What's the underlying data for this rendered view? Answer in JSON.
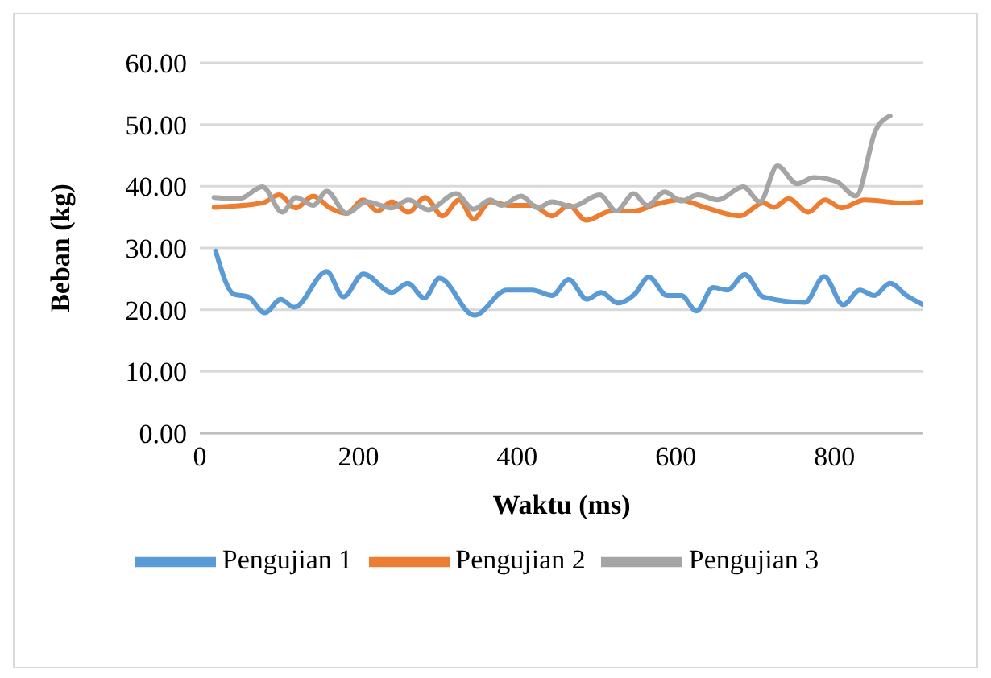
{
  "chart_data": {
    "type": "line",
    "xlabel": "Waktu (ms)",
    "ylabel": "Beban (kg)",
    "xlim": [
      0,
      912
    ],
    "xticks": [
      0,
      200,
      400,
      600,
      800
    ],
    "ylim": [
      0,
      60
    ],
    "yticks": [
      {
        "value": 0,
        "label": "0.00"
      },
      {
        "value": 10,
        "label": "10.00"
      },
      {
        "value": 20,
        "label": "20.00"
      },
      {
        "value": 30,
        "label": "30.00"
      },
      {
        "value": 40,
        "label": "40.00"
      },
      {
        "value": 50,
        "label": "50.00"
      },
      {
        "value": 60,
        "label": "60.00"
      }
    ],
    "grid": "y",
    "legend": "bottom",
    "marker": "none",
    "line_style": "solid",
    "series": [
      {
        "name": "Pengujian 1",
        "color": "#5b9bd5",
        "x": [
          20,
          43,
          61,
          82,
          102,
          119,
          160,
          181,
          206,
          242,
          262,
          283,
          302,
          346,
          387,
          419,
          444,
          465,
          488,
          506,
          527,
          548,
          566,
          589,
          607,
          626,
          647,
          665,
          687,
          710,
          763,
          787,
          811,
          832,
          850,
          870,
          891,
          912
        ],
        "values": [
          29.5,
          22.5,
          22.1,
          19.5,
          21.7,
          20.4,
          26.2,
          22.1,
          25.8,
          22.8,
          24.3,
          21.9,
          25.1,
          19.1,
          23.2,
          23.2,
          22.3,
          24.9,
          21.7,
          22.8,
          21.1,
          22.5,
          25.3,
          22.3,
          22.3,
          19.8,
          23.6,
          23.2,
          25.7,
          22.1,
          21.2,
          25.4,
          20.8,
          23.2,
          22.3,
          24.3,
          22.3,
          20.8
        ]
      },
      {
        "name": "Pengujian 2",
        "color": "#ed7d31",
        "x": [
          18,
          79,
          100,
          121,
          143,
          164,
          185,
          206,
          224,
          242,
          263,
          284,
          306,
          327,
          345,
          366,
          391,
          419,
          444,
          465,
          487,
          519,
          547,
          575,
          604,
          639,
          681,
          710,
          724,
          742,
          767,
          788,
          809,
          838,
          887,
          912
        ],
        "values": [
          36.6,
          37.3,
          38.6,
          36.5,
          38.4,
          36.5,
          35.6,
          37.8,
          36.0,
          37.5,
          35.8,
          38.2,
          35.2,
          37.8,
          34.7,
          37.5,
          36.9,
          36.9,
          35.2,
          36.9,
          34.5,
          36.0,
          36.0,
          37.1,
          37.8,
          36.5,
          35.2,
          37.3,
          36.6,
          38.0,
          35.8,
          37.8,
          36.5,
          37.8,
          37.3,
          37.5
        ]
      },
      {
        "name": "Pengujian 3",
        "color": "#a5a5a5",
        "x": [
          18,
          50,
          79,
          104,
          121,
          143,
          160,
          185,
          210,
          242,
          263,
          288,
          323,
          345,
          366,
          380,
          405,
          426,
          444,
          469,
          504,
          525,
          547,
          564,
          586,
          607,
          628,
          653,
          685,
          706,
          728,
          753,
          774,
          802,
          827,
          852,
          870
        ],
        "values": [
          38.2,
          38.0,
          39.9,
          35.8,
          38.2,
          36.9,
          39.2,
          35.6,
          37.5,
          36.5,
          37.8,
          36.2,
          38.8,
          36.3,
          37.8,
          36.9,
          38.4,
          36.5,
          37.5,
          36.7,
          38.6,
          36.0,
          38.8,
          36.9,
          39.1,
          37.6,
          38.6,
          37.8,
          39.9,
          37.5,
          43.3,
          40.4,
          41.4,
          40.8,
          38.4,
          49.1,
          51.4
        ]
      }
    ]
  }
}
